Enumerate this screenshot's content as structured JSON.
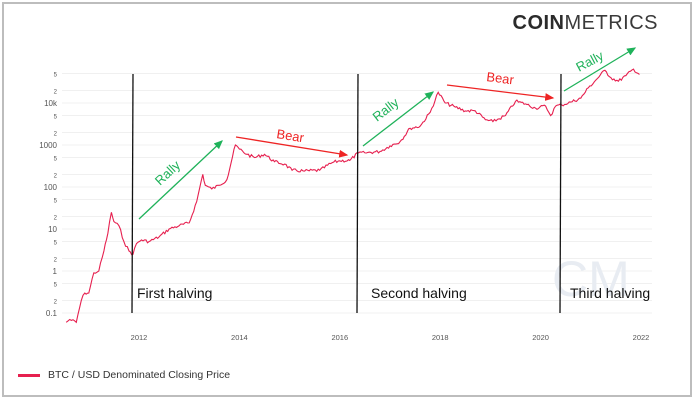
{
  "brand": {
    "bold": "COIN",
    "light": "METRICS"
  },
  "legend": {
    "label": "BTC / USD Denominated Closing Price",
    "color": "#e6204f"
  },
  "annotations": {
    "halvings": [
      {
        "label": "First halving",
        "x_year": 2011.88
      },
      {
        "label": "Second halving",
        "x_year": 2016.37
      },
      {
        "label": "Third halving",
        "x_year": 2020.42
      }
    ],
    "arrows": [
      {
        "label": "Rally",
        "color": "#1fb25a"
      },
      {
        "label": "Bear",
        "color": "#ee2424"
      },
      {
        "label": "Rally",
        "color": "#1fb25a"
      },
      {
        "label": "Bear",
        "color": "#ee2424"
      },
      {
        "label": "Rally",
        "color": "#1fb25a"
      }
    ]
  },
  "chart_data": {
    "type": "line",
    "title": "",
    "xlabel": "",
    "ylabel": "",
    "yscale": "log",
    "ylim": [
      0.05,
      70000
    ],
    "xlim": [
      2010.5,
      2022.05
    ],
    "grid": true,
    "legend_position": "bottom-left",
    "x_ticks": [
      "2012",
      "2014",
      "2016",
      "2018",
      "2020",
      "2022"
    ],
    "y_ticks": [
      "0.1",
      "2",
      "5",
      "1",
      "2",
      "5",
      "10",
      "2",
      "5",
      "100",
      "2",
      "5",
      "1000",
      "2",
      "5",
      "10k",
      "2",
      "5"
    ],
    "y_tick_values": [
      0.1,
      0.2,
      0.5,
      1,
      2,
      5,
      10,
      20,
      50,
      100,
      200,
      500,
      1000,
      2000,
      5000,
      10000,
      20000,
      50000
    ],
    "series": [
      {
        "name": "BTC / USD Denominated Closing Price",
        "color": "#e6204f",
        "x": [
          2010.55,
          2010.62,
          2010.75,
          2010.85,
          2010.92,
          2011.0,
          2011.1,
          2011.2,
          2011.3,
          2011.38,
          2011.45,
          2011.5,
          2011.6,
          2011.7,
          2011.8,
          2011.88,
          2011.95,
          2012.05,
          2012.2,
          2012.4,
          2012.6,
          2012.8,
          2013.0,
          2013.15,
          2013.27,
          2013.32,
          2013.45,
          2013.6,
          2013.75,
          2013.92,
          2014.0,
          2014.15,
          2014.3,
          2014.5,
          2014.7,
          2014.9,
          2015.05,
          2015.3,
          2015.6,
          2015.85,
          2016.0,
          2016.2,
          2016.37,
          2016.5,
          2016.8,
          2017.0,
          2017.2,
          2017.4,
          2017.6,
          2017.8,
          2017.96,
          2018.1,
          2018.3,
          2018.5,
          2018.7,
          2018.9,
          2019.05,
          2019.3,
          2019.5,
          2019.7,
          2019.9,
          2020.1,
          2020.2,
          2020.3,
          2020.42,
          2020.6,
          2020.8,
          2020.95,
          2021.1,
          2021.28,
          2021.4,
          2021.55,
          2021.7,
          2021.85,
          2021.97
        ],
        "values": [
          0.06,
          0.07,
          0.06,
          0.2,
          0.3,
          0.3,
          0.9,
          1.0,
          3,
          8,
          25,
          15,
          12,
          5,
          3,
          2.5,
          4.5,
          5.5,
          5,
          6.5,
          10,
          12,
          14,
          45,
          200,
          110,
          90,
          110,
          150,
          1000,
          800,
          600,
          500,
          600,
          400,
          350,
          250,
          240,
          250,
          380,
          420,
          430,
          650,
          650,
          700,
          950,
          1200,
          2500,
          2800,
          6000,
          18000,
          10000,
          8000,
          6500,
          6500,
          4000,
          3600,
          5000,
          11000,
          9500,
          7500,
          8500,
          5000,
          8500,
          9000,
          10500,
          13000,
          23000,
          35000,
          60000,
          40000,
          33000,
          45000,
          64000,
          48000
        ]
      }
    ]
  }
}
